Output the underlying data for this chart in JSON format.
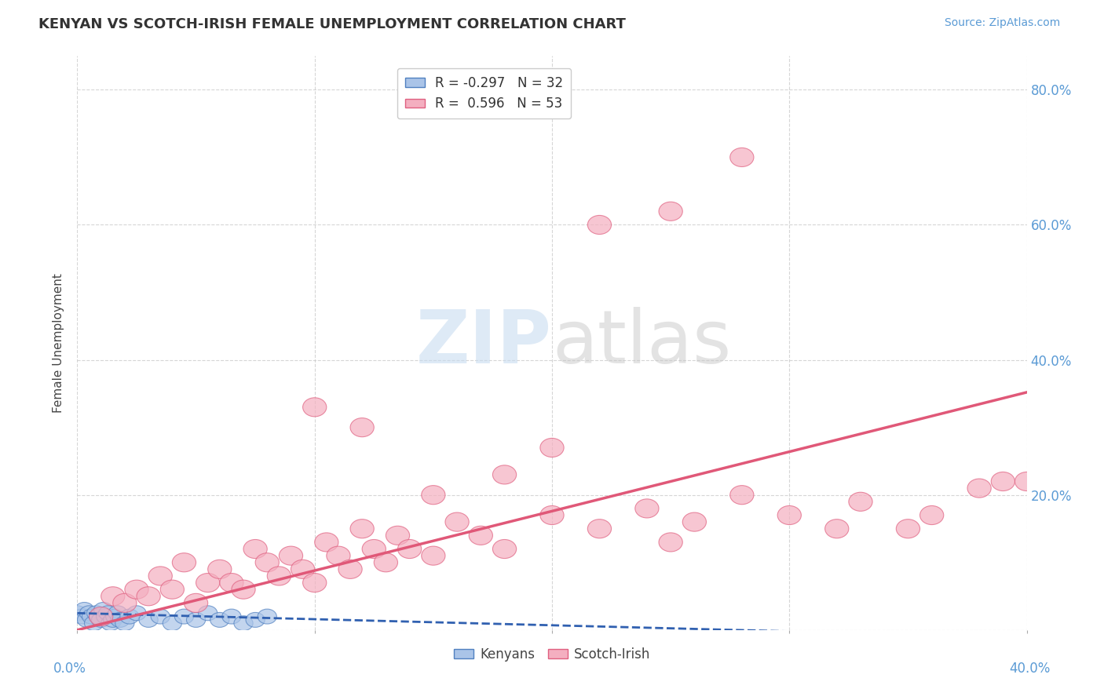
{
  "title": "KENYAN VS SCOTCH-IRISH FEMALE UNEMPLOYMENT CORRELATION CHART",
  "source_text": "Source: ZipAtlas.com",
  "ylabel": "Female Unemployment",
  "xlim": [
    0.0,
    0.4
  ],
  "ylim": [
    0.0,
    0.85
  ],
  "yticks": [
    0.0,
    0.2,
    0.4,
    0.6,
    0.8
  ],
  "ytick_labels": [
    "",
    "20.0%",
    "40.0%",
    "60.0%",
    "80.0%"
  ],
  "background_color": "#ffffff",
  "kenyan_color": "#aac4e8",
  "scotch_color": "#f4afc0",
  "kenyan_edge_color": "#5080c0",
  "scotch_edge_color": "#e06080",
  "kenyan_line_color": "#3060b0",
  "scotch_line_color": "#e05878",
  "kenyan_points": [
    [
      0.0,
      0.025
    ],
    [
      0.002,
      0.02
    ],
    [
      0.003,
      0.03
    ],
    [
      0.004,
      0.015
    ],
    [
      0.005,
      0.025
    ],
    [
      0.006,
      0.02
    ],
    [
      0.007,
      0.01
    ],
    [
      0.008,
      0.025
    ],
    [
      0.009,
      0.02
    ],
    [
      0.01,
      0.015
    ],
    [
      0.011,
      0.03
    ],
    [
      0.012,
      0.02
    ],
    [
      0.013,
      0.025
    ],
    [
      0.014,
      0.01
    ],
    [
      0.015,
      0.015
    ],
    [
      0.016,
      0.02
    ],
    [
      0.017,
      0.025
    ],
    [
      0.018,
      0.015
    ],
    [
      0.02,
      0.01
    ],
    [
      0.022,
      0.02
    ],
    [
      0.025,
      0.025
    ],
    [
      0.03,
      0.015
    ],
    [
      0.035,
      0.02
    ],
    [
      0.04,
      0.01
    ],
    [
      0.045,
      0.02
    ],
    [
      0.05,
      0.015
    ],
    [
      0.055,
      0.025
    ],
    [
      0.06,
      0.015
    ],
    [
      0.065,
      0.02
    ],
    [
      0.07,
      0.01
    ],
    [
      0.075,
      0.015
    ],
    [
      0.08,
      0.02
    ]
  ],
  "scotch_points": [
    [
      0.01,
      0.02
    ],
    [
      0.015,
      0.05
    ],
    [
      0.02,
      0.04
    ],
    [
      0.025,
      0.06
    ],
    [
      0.03,
      0.05
    ],
    [
      0.035,
      0.08
    ],
    [
      0.04,
      0.06
    ],
    [
      0.045,
      0.1
    ],
    [
      0.05,
      0.04
    ],
    [
      0.055,
      0.07
    ],
    [
      0.06,
      0.09
    ],
    [
      0.065,
      0.07
    ],
    [
      0.07,
      0.06
    ],
    [
      0.075,
      0.12
    ],
    [
      0.08,
      0.1
    ],
    [
      0.085,
      0.08
    ],
    [
      0.09,
      0.11
    ],
    [
      0.095,
      0.09
    ],
    [
      0.1,
      0.07
    ],
    [
      0.105,
      0.13
    ],
    [
      0.11,
      0.11
    ],
    [
      0.115,
      0.09
    ],
    [
      0.12,
      0.15
    ],
    [
      0.125,
      0.12
    ],
    [
      0.13,
      0.1
    ],
    [
      0.135,
      0.14
    ],
    [
      0.14,
      0.12
    ],
    [
      0.15,
      0.11
    ],
    [
      0.16,
      0.16
    ],
    [
      0.17,
      0.14
    ],
    [
      0.18,
      0.12
    ],
    [
      0.2,
      0.17
    ],
    [
      0.22,
      0.15
    ],
    [
      0.24,
      0.18
    ],
    [
      0.25,
      0.13
    ],
    [
      0.26,
      0.16
    ],
    [
      0.28,
      0.2
    ],
    [
      0.3,
      0.17
    ],
    [
      0.32,
      0.15
    ],
    [
      0.33,
      0.19
    ],
    [
      0.35,
      0.15
    ],
    [
      0.36,
      0.17
    ],
    [
      0.38,
      0.21
    ],
    [
      0.39,
      0.22
    ],
    [
      0.4,
      0.22
    ],
    [
      0.15,
      0.2
    ],
    [
      0.2,
      0.27
    ],
    [
      0.25,
      0.62
    ],
    [
      0.28,
      0.7
    ],
    [
      0.1,
      0.33
    ],
    [
      0.12,
      0.3
    ],
    [
      0.22,
      0.6
    ],
    [
      0.18,
      0.23
    ]
  ],
  "kenyan_line": [
    -0.05,
    0.025,
    0.4,
    -0.01
  ],
  "scotch_line": [
    0.0,
    0.0,
    0.4,
    0.35
  ]
}
